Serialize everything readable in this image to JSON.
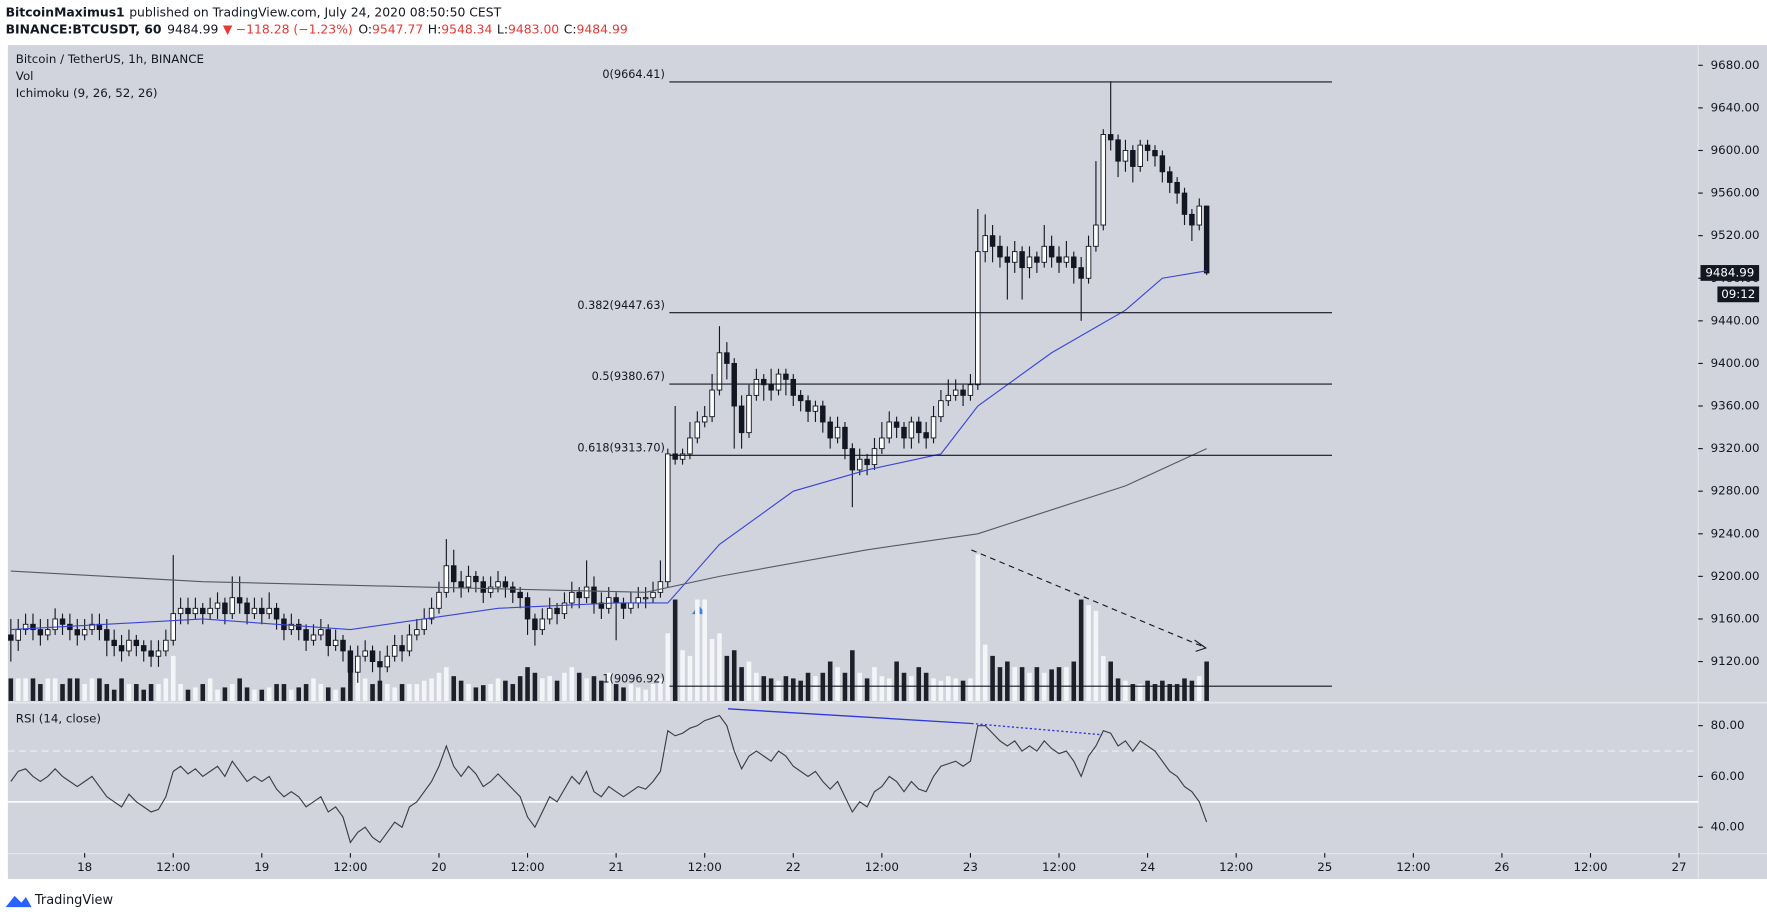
{
  "header": {
    "author": "BitcoinMaximus1",
    "published": "published on TradingView.com, July 24, 2020 08:50:50 CEST",
    "symbol": "BINANCE:BTCUSDT, 60",
    "last": "9484.99",
    "change": "−118.28 (−1.23%)",
    "ohlc": [
      {
        "key": "O:",
        "value": "9547.77"
      },
      {
        "key": "H:",
        "value": "9548.34"
      },
      {
        "key": "L:",
        "value": "9483.00"
      },
      {
        "key": "C:",
        "value": "9484.99"
      }
    ]
  },
  "chart_data": {
    "type": "candlestick",
    "title": "Bitcoin / TetherUS, 1h, BINANCE",
    "labels": [
      "Vol",
      "Ichimoku (9, 26, 52, 26)"
    ],
    "x": [
      14,
      15,
      16,
      17,
      18,
      19,
      20,
      21,
      22,
      23,
      24,
      25,
      26,
      27,
      28,
      29,
      30,
      31,
      32,
      33,
      34,
      35,
      36,
      37,
      38,
      39,
      40,
      41,
      42,
      43,
      44,
      45,
      46,
      47,
      48,
      49,
      50,
      51,
      52,
      53,
      54,
      55,
      56,
      57,
      58,
      59,
      60,
      61,
      62,
      63,
      64,
      65,
      66,
      67,
      68,
      69,
      70,
      71,
      72,
      73,
      74,
      75,
      76,
      77,
      78,
      79,
      80,
      81,
      82,
      83,
      84,
      85,
      86,
      87,
      88,
      89,
      90,
      91,
      92,
      93,
      94,
      95,
      96,
      97,
      98,
      99,
      100,
      101,
      102,
      103,
      104,
      105,
      106,
      107,
      108,
      109,
      110,
      111,
      112,
      113,
      114,
      115,
      116,
      117,
      118,
      119,
      120,
      121,
      122,
      123,
      124,
      125,
      126,
      127,
      128,
      129,
      130,
      131,
      132,
      133,
      134,
      135,
      136,
      137,
      138,
      139,
      140,
      141,
      142,
      143,
      144,
      145,
      146,
      147,
      148,
      149,
      150,
      151,
      152,
      153,
      154,
      155,
      156,
      157,
      158,
      159,
      160,
      161,
      162,
      163,
      164,
      165,
      166,
      167,
      168,
      169,
      170,
      171,
      172,
      173,
      174,
      175,
      176
    ],
    "open": [
      9145,
      9140,
      9150,
      9155,
      9150,
      9145,
      9150,
      9160,
      9155,
      9150,
      9145,
      9150,
      9155,
      9150,
      9140,
      9135,
      9130,
      9140,
      9135,
      9130,
      9125,
      9130,
      9140,
      9165,
      9170,
      9165,
      9170,
      9165,
      9170,
      9175,
      9165,
      9180,
      9175,
      9165,
      9170,
      9165,
      9170,
      9160,
      9150,
      9155,
      9150,
      9140,
      9145,
      9150,
      9135,
      9140,
      9130,
      9110,
      9125,
      9130,
      9120,
      9115,
      9125,
      9135,
      9130,
      9145,
      9150,
      9160,
      9170,
      9185,
      9210,
      9195,
      9190,
      9200,
      9195,
      9185,
      9190,
      9195,
      9190,
      9185,
      9180,
      9160,
      9150,
      9160,
      9170,
      9165,
      9175,
      9185,
      9180,
      9190,
      9175,
      9170,
      9180,
      9175,
      9170,
      9175,
      9180,
      9180,
      9185,
      9195,
      9315,
      9310,
      9315,
      9330,
      9345,
      9350,
      9375,
      9410,
      9400,
      9360,
      9335,
      9370,
      9385,
      9380,
      9375,
      9390,
      9385,
      9370,
      9365,
      9355,
      9360,
      9345,
      9330,
      9340,
      9320,
      9300,
      9310,
      9305,
      9320,
      9330,
      9345,
      9340,
      9330,
      9345,
      9335,
      9330,
      9350,
      9365,
      9370,
      9375,
      9370,
      9380,
      9505,
      9520,
      9510,
      9500,
      9495,
      9505,
      9490,
      9500,
      9495,
      9510,
      9500,
      9495,
      9500,
      9490,
      9480,
      9510,
      9530,
      9615,
      9610,
      9590,
      9600,
      9585,
      9605,
      9600,
      9595,
      9580,
      9570,
      9560,
      9540,
      9530,
      9547.77
    ],
    "high": [
      9160,
      9160,
      9165,
      9165,
      9160,
      9160,
      9170,
      9165,
      9165,
      9160,
      9160,
      9165,
      9165,
      9160,
      9150,
      9145,
      9150,
      9145,
      9140,
      9140,
      9140,
      9150,
      9220,
      9180,
      9180,
      9180,
      9175,
      9180,
      9185,
      9180,
      9200,
      9200,
      9180,
      9180,
      9180,
      9185,
      9175,
      9165,
      9165,
      9160,
      9155,
      9155,
      9160,
      9155,
      9150,
      9145,
      9135,
      9135,
      9140,
      9135,
      9130,
      9135,
      9145,
      9145,
      9155,
      9160,
      9170,
      9180,
      9195,
      9235,
      9225,
      9205,
      9210,
      9205,
      9200,
      9200,
      9205,
      9200,
      9195,
      9190,
      9185,
      9165,
      9170,
      9180,
      9175,
      9185,
      9195,
      9190,
      9215,
      9200,
      9185,
      9190,
      9185,
      9180,
      9185,
      9190,
      9190,
      9195,
      9215,
      9320,
      9360,
      9320,
      9345,
      9355,
      9360,
      9390,
      9435,
      9420,
      9405,
      9370,
      9380,
      9395,
      9390,
      9395,
      9395,
      9395,
      9390,
      9375,
      9370,
      9365,
      9365,
      9350,
      9350,
      9345,
      9325,
      9320,
      9315,
      9330,
      9345,
      9355,
      9350,
      9345,
      9350,
      9350,
      9345,
      9360,
      9375,
      9385,
      9385,
      9380,
      9390,
      9545,
      9540,
      9530,
      9520,
      9510,
      9515,
      9510,
      9510,
      9505,
      9530,
      9520,
      9510,
      9515,
      9505,
      9500,
      9520,
      9590,
      9620,
      9665,
      9615,
      9610,
      9605,
      9610,
      9610,
      9605,
      9600,
      9585,
      9575,
      9565,
      9545,
      9555,
      9548.34
    ],
    "low": [
      9120,
      9130,
      9145,
      9140,
      9135,
      9140,
      9145,
      9145,
      9140,
      9135,
      9140,
      9145,
      9140,
      9125,
      9125,
      9120,
      9125,
      9125,
      9120,
      9115,
      9115,
      9125,
      9135,
      9155,
      9155,
      9160,
      9155,
      9160,
      9160,
      9155,
      9160,
      9165,
      9155,
      9160,
      9155,
      9160,
      9150,
      9140,
      9145,
      9140,
      9130,
      9135,
      9140,
      9125,
      9130,
      9120,
      9100,
      9100,
      9120,
      9110,
      9100,
      9110,
      9120,
      9120,
      9125,
      9140,
      9145,
      9155,
      9165,
      9180,
      9185,
      9180,
      9185,
      9185,
      9175,
      9180,
      9185,
      9180,
      9175,
      9170,
      9145,
      9135,
      9145,
      9155,
      9155,
      9160,
      9170,
      9170,
      9175,
      9165,
      9160,
      9165,
      9140,
      9160,
      9165,
      9170,
      9170,
      9175,
      9180,
      9190,
      9305,
      9305,
      9310,
      9325,
      9340,
      9345,
      9370,
      9385,
      9320,
      9320,
      9330,
      9365,
      9365,
      9365,
      9370,
      9370,
      9360,
      9355,
      9345,
      9345,
      9335,
      9320,
      9325,
      9310,
      9265,
      9295,
      9295,
      9300,
      9315,
      9325,
      9330,
      9320,
      9320,
      9325,
      9320,
      9325,
      9345,
      9360,
      9365,
      9360,
      9365,
      9375,
      9495,
      9495,
      9490,
      9460,
      9485,
      9460,
      9480,
      9485,
      9490,
      9490,
      9485,
      9490,
      9475,
      9440,
      9475,
      9505,
      9525,
      9600,
      9575,
      9580,
      9570,
      9580,
      9590,
      9585,
      9570,
      9560,
      9550,
      9530,
      9515,
      9525,
      9483.0
    ],
    "close": [
      9140,
      9150,
      9155,
      9150,
      9145,
      9150,
      9160,
      9155,
      9150,
      9145,
      9150,
      9155,
      9150,
      9140,
      9135,
      9130,
      9140,
      9135,
      9130,
      9125,
      9130,
      9140,
      9165,
      9170,
      9165,
      9170,
      9165,
      9170,
      9175,
      9165,
      9180,
      9175,
      9165,
      9170,
      9165,
      9170,
      9160,
      9150,
      9155,
      9150,
      9140,
      9145,
      9150,
      9135,
      9140,
      9130,
      9110,
      9125,
      9130,
      9120,
      9115,
      9125,
      9135,
      9130,
      9145,
      9150,
      9160,
      9170,
      9185,
      9210,
      9195,
      9190,
      9200,
      9195,
      9185,
      9190,
      9195,
      9190,
      9185,
      9180,
      9160,
      9150,
      9160,
      9170,
      9165,
      9175,
      9185,
      9180,
      9190,
      9175,
      9170,
      9180,
      9175,
      9170,
      9175,
      9180,
      9180,
      9185,
      9195,
      9315,
      9310,
      9315,
      9330,
      9345,
      9350,
      9375,
      9410,
      9400,
      9360,
      9335,
      9370,
      9385,
      9380,
      9375,
      9390,
      9385,
      9370,
      9365,
      9355,
      9360,
      9345,
      9330,
      9340,
      9320,
      9300,
      9310,
      9305,
      9320,
      9330,
      9345,
      9340,
      9330,
      9345,
      9335,
      9330,
      9350,
      9365,
      9370,
      9375,
      9370,
      9380,
      9505,
      9520,
      9510,
      9500,
      9495,
      9505,
      9490,
      9500,
      9495,
      9510,
      9500,
      9495,
      9500,
      9490,
      9480,
      9510,
      9530,
      9615,
      9610,
      9590,
      9600,
      9585,
      9605,
      9600,
      9595,
      9580,
      9570,
      9560,
      9540,
      9530,
      9547.77,
      9484.99
    ],
    "volume": [
      20,
      20,
      20,
      20,
      15,
      20,
      20,
      15,
      20,
      20,
      15,
      20,
      20,
      15,
      10,
      20,
      15,
      15,
      10,
      15,
      15,
      20,
      40,
      15,
      10,
      12,
      15,
      20,
      10,
      12,
      15,
      20,
      12,
      10,
      10,
      12,
      15,
      15,
      10,
      12,
      15,
      20,
      15,
      12,
      10,
      12,
      30,
      25,
      20,
      15,
      18,
      15,
      12,
      15,
      15,
      15,
      18,
      20,
      25,
      30,
      22,
      18,
      15,
      12,
      14,
      15,
      20,
      18,
      15,
      22,
      30,
      25,
      20,
      22,
      18,
      25,
      30,
      25,
      20,
      22,
      18,
      25,
      15,
      12,
      15,
      12,
      10,
      15,
      20,
      60,
      90,
      45,
      40,
      90,
      90,
      55,
      60,
      40,
      45,
      30,
      35,
      25,
      22,
      20,
      18,
      22,
      20,
      18,
      25,
      22,
      25,
      35,
      30,
      25,
      45,
      25,
      20,
      30,
      22,
      20,
      35,
      25,
      22,
      30,
      25,
      20,
      18,
      22,
      20,
      18,
      20,
      130,
      50,
      40,
      30,
      35,
      30,
      30,
      25,
      30,
      25,
      28,
      30,
      30,
      35,
      90,
      85,
      80,
      40,
      35,
      20,
      18,
      15,
      15,
      18,
      15,
      18,
      15,
      15,
      20,
      18,
      22,
      35
    ],
    "xlim": [
      13.6,
      242.6
    ],
    "xticks": [
      {
        "value": 24,
        "label": "18"
      },
      {
        "value": 36,
        "label": "12:00"
      },
      {
        "value": 48,
        "label": "19"
      },
      {
        "value": 60,
        "label": "12:00"
      },
      {
        "value": 72,
        "label": "20"
      },
      {
        "value": 84,
        "label": "12:00"
      },
      {
        "value": 96,
        "label": "21"
      },
      {
        "value": 108,
        "label": "12:00"
      },
      {
        "value": 120,
        "label": "22"
      },
      {
        "value": 132,
        "label": "12:00"
      },
      {
        "value": 144,
        "label": "23"
      },
      {
        "value": 156,
        "label": "12:00"
      },
      {
        "value": 168,
        "label": "24"
      },
      {
        "value": 180,
        "label": "12:00"
      },
      {
        "value": 192,
        "label": "25"
      },
      {
        "value": 204,
        "label": "12:00"
      },
      {
        "value": 216,
        "label": "26"
      },
      {
        "value": 228,
        "label": "12:00"
      },
      {
        "value": 240,
        "label": "27"
      }
    ],
    "ylim": [
      9083,
      9699
    ],
    "yticks": [
      {
        "value": 9120,
        "label": "9120.00"
      },
      {
        "value": 9160,
        "label": "9160.00"
      },
      {
        "value": 9200,
        "label": "9200.00"
      },
      {
        "value": 9240,
        "label": "9240.00"
      },
      {
        "value": 9280,
        "label": "9280.00"
      },
      {
        "value": 9320,
        "label": "9320.00"
      },
      {
        "value": 9360,
        "label": "9360.00"
      },
      {
        "value": 9400,
        "label": "9400.00"
      },
      {
        "value": 9440,
        "label": "9440.00"
      },
      {
        "value": 9480,
        "label": "9480.00"
      },
      {
        "value": 9520,
        "label": "9520.00"
      },
      {
        "value": 9560,
        "label": "9560.00"
      },
      {
        "value": 9600,
        "label": "9600.00"
      },
      {
        "value": 9640,
        "label": "9640.00"
      },
      {
        "value": 9680,
        "label": "9680.00"
      }
    ],
    "up_color": "#ffffff",
    "down_color": "#131722",
    "last_price_label": "9484.99",
    "countdown": "09:12",
    "fib_levels": [
      {
        "label": "0(9664.41)",
        "value": 9664.41
      },
      {
        "label": "0.382(9447.63)",
        "value": 9447.63
      },
      {
        "label": "0.5(9380.67)",
        "value": 9380.67
      },
      {
        "label": "0.618(9313.70)",
        "value": 9313.7
      },
      {
        "label": "1(9096.92)",
        "value": 9096.92
      }
    ],
    "ma_lines": [
      {
        "color": "#3a44d8",
        "x": [
          14,
          40,
          60,
          70,
          80,
          96,
          103,
          110,
          120,
          130,
          140,
          145,
          155,
          165,
          170,
          176
        ],
        "values": [
          9150,
          9160,
          9150,
          9160,
          9170,
          9175,
          9175,
          9230,
          9280,
          9300,
          9315,
          9360,
          9410,
          9450,
          9480,
          9487
        ]
      },
      {
        "color": "#555a63",
        "x": [
          14,
          40,
          70,
          100,
          110,
          130,
          145,
          165,
          176
        ],
        "values": [
          9205,
          9195,
          9190,
          9185,
          9200,
          9225,
          9240,
          9285,
          9320
        ]
      }
    ],
    "rsi": {
      "title": "RSI (14, close)",
      "color": "#3a3d45",
      "values": [
        58,
        62,
        63,
        60,
        58,
        60,
        63,
        60,
        58,
        56,
        58,
        60,
        56,
        52,
        50,
        48,
        53,
        50,
        48,
        46,
        47,
        52,
        62,
        64,
        61,
        63,
        60,
        62,
        64,
        60,
        66,
        62,
        58,
        60,
        58,
        60,
        55,
        52,
        54,
        52,
        48,
        50,
        52,
        46,
        48,
        44,
        34,
        38,
        40,
        36,
        34,
        38,
        42,
        40,
        48,
        50,
        54,
        58,
        64,
        72,
        64,
        60,
        64,
        61,
        56,
        58,
        61,
        58,
        55,
        52,
        44,
        40,
        46,
        52,
        50,
        55,
        60,
        57,
        62,
        54,
        52,
        56,
        54,
        52,
        54,
        56,
        55,
        58,
        62,
        78,
        76,
        77,
        79,
        80,
        82,
        83,
        84,
        80,
        70,
        63,
        68,
        70,
        68,
        66,
        70,
        68,
        64,
        62,
        60,
        62,
        58,
        55,
        58,
        52,
        46,
        50,
        48,
        54,
        56,
        60,
        58,
        54,
        58,
        55,
        54,
        60,
        64,
        65,
        66,
        64,
        66,
        80,
        80,
        77,
        74,
        72,
        74,
        70,
        72,
        70,
        74,
        71,
        69,
        70,
        66,
        60,
        68,
        72,
        78,
        77,
        72,
        74,
        70,
        74,
        72,
        70,
        66,
        62,
        60,
        56,
        54,
        50,
        42
      ],
      "ylim": [
        29.8,
        88.4
      ],
      "yticks": [
        {
          "value": 40,
          "label": "40.00"
        },
        {
          "value": 60,
          "label": "60.00"
        },
        {
          "value": 80,
          "label": "80.00"
        }
      ],
      "levels": [
        70,
        50
      ]
    }
  },
  "footer": {
    "brand": "TradingView"
  }
}
